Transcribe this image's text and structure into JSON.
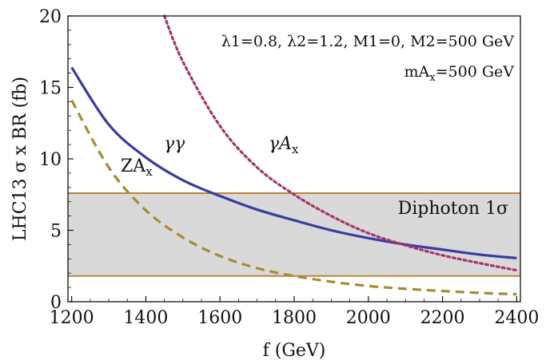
{
  "chart_data": {
    "type": "line",
    "title": "",
    "xlabel": "f (GeV)",
    "ylabel": "LHC13 σ x BR (fb)",
    "xlim": [
      1190,
      2410
    ],
    "ylim": [
      0,
      20
    ],
    "xticks": [
      1200,
      1400,
      1600,
      1800,
      2000,
      2200,
      2400
    ],
    "yticks": [
      0,
      5,
      10,
      15,
      20
    ],
    "grid": false,
    "legend": "none",
    "band": {
      "label": "Diphoton 1σ",
      "y_low": 1.8,
      "y_high": 7.6,
      "fill": "#d9d9d9",
      "edge": "#b8863e"
    },
    "annotations": {
      "params_line1": "λ1=0.8, λ2=1.2, M1=0, M2=500 GeV",
      "params_line2": "mA_x=500 GeV"
    },
    "series": [
      {
        "label": "γγ",
        "color": "#3a3aa0",
        "style": "solid",
        "x": [
          1200,
          1300,
          1400,
          1500,
          1600,
          1700,
          1800,
          1900,
          2000,
          2100,
          2200,
          2300,
          2400
        ],
        "y": [
          16.4,
          12.4,
          10.1,
          8.5,
          7.4,
          6.45,
          5.7,
          5.0,
          4.45,
          4.0,
          3.65,
          3.3,
          3.05
        ]
      },
      {
        "label": "γA_x",
        "color": "#a3356a",
        "style": "dotted",
        "x": [
          1450,
          1500,
          1600,
          1700,
          1800,
          1900,
          2000,
          2100,
          2200,
          2300,
          2400
        ],
        "y": [
          20.0,
          16.8,
          12.3,
          9.4,
          7.5,
          6.0,
          4.8,
          3.95,
          3.25,
          2.7,
          2.2
        ]
      },
      {
        "label": "ZA_x",
        "color": "#a58c2c",
        "style": "dashed",
        "x": [
          1200,
          1300,
          1400,
          1500,
          1600,
          1700,
          1800,
          1900,
          2000,
          2100,
          2200,
          2300,
          2400
        ],
        "y": [
          14.1,
          9.4,
          6.4,
          4.5,
          3.2,
          2.35,
          1.8,
          1.4,
          1.1,
          0.9,
          0.75,
          0.62,
          0.52
        ]
      }
    ],
    "label_texts": {
      "gg": "γγ",
      "gA": "γA",
      "gA_sub": "x",
      "ZA": "ZA",
      "ZA_sub": "x"
    }
  }
}
